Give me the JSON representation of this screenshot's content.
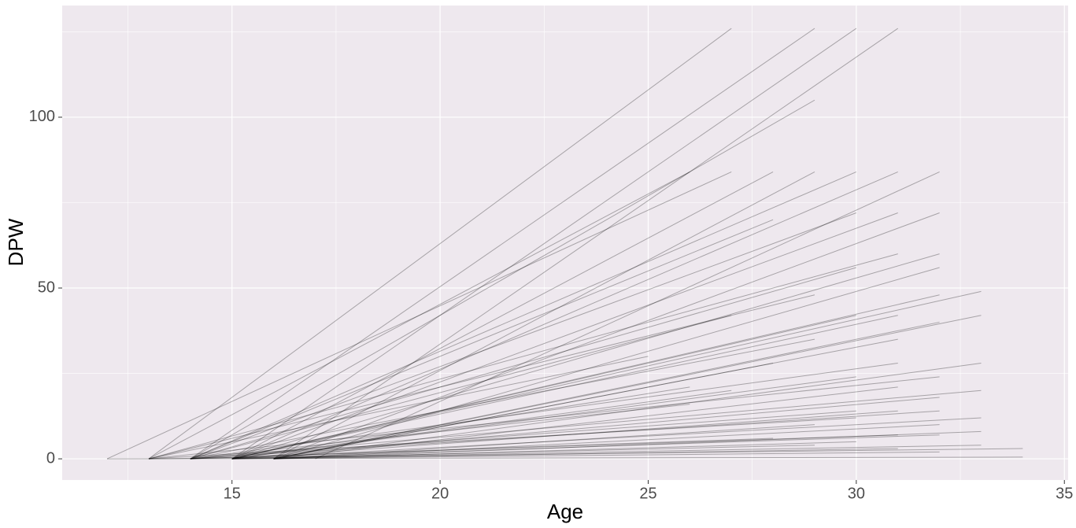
{
  "chart_data": {
    "type": "line",
    "xlabel": "Age",
    "ylabel": "DPW",
    "xlim": [
      10.92,
      35.09
    ],
    "ylim": [
      -6.2,
      132.7
    ],
    "xticks": [
      15,
      20,
      25,
      30,
      35
    ],
    "yticks": [
      0,
      50,
      100
    ],
    "x_minor_grid": [
      12.5,
      17.5,
      22.5,
      27.5,
      32.5
    ],
    "y_minor_grid": [
      25,
      75,
      125
    ],
    "grid": true,
    "panel_color": "#EEE8EE",
    "grid_color": "#FFFFFF",
    "color": "#000000",
    "opacity": 0.3,
    "series": [
      {
        "x": [
          13,
          27
        ],
        "values": [
          0,
          126
        ]
      },
      {
        "x": [
          14,
          29
        ],
        "values": [
          0,
          126
        ]
      },
      {
        "x": [
          15,
          30
        ],
        "values": [
          0,
          126
        ]
      },
      {
        "x": [
          16,
          31
        ],
        "values": [
          0,
          126
        ]
      },
      {
        "x": [
          14,
          29
        ],
        "values": [
          0,
          105
        ]
      },
      {
        "x": [
          13,
          26
        ],
        "values": [
          0,
          84
        ]
      },
      {
        "x": [
          12,
          27
        ],
        "values": [
          0,
          84
        ]
      },
      {
        "x": [
          15,
          28
        ],
        "values": [
          0,
          84
        ]
      },
      {
        "x": [
          16,
          29
        ],
        "values": [
          0,
          84
        ]
      },
      {
        "x": [
          14,
          30
        ],
        "values": [
          0,
          84
        ]
      },
      {
        "x": [
          15,
          31
        ],
        "values": [
          0,
          84
        ]
      },
      {
        "x": [
          17,
          32
        ],
        "values": [
          0,
          84
        ]
      },
      {
        "x": [
          14,
          30
        ],
        "values": [
          0,
          72
        ]
      },
      {
        "x": [
          15,
          31
        ],
        "values": [
          0,
          72
        ]
      },
      {
        "x": [
          16,
          32
        ],
        "values": [
          0,
          72
        ]
      },
      {
        "x": [
          13,
          31
        ],
        "values": [
          0,
          60
        ]
      },
      {
        "x": [
          15,
          32
        ],
        "values": [
          0,
          60
        ]
      },
      {
        "x": [
          16,
          32
        ],
        "values": [
          0,
          56
        ]
      },
      {
        "x": [
          15,
          33
        ],
        "values": [
          0,
          49
        ]
      },
      {
        "x": [
          16,
          33
        ],
        "values": [
          0,
          42
        ]
      },
      {
        "x": [
          14,
          30
        ],
        "values": [
          0,
          56
        ]
      },
      {
        "x": [
          14,
          28
        ],
        "values": [
          0,
          70
        ]
      },
      {
        "x": [
          13,
          29
        ],
        "values": [
          0,
          48
        ]
      },
      {
        "x": [
          15,
          30
        ],
        "values": [
          0,
          42
        ]
      },
      {
        "x": [
          16,
          31
        ],
        "values": [
          0,
          35
        ]
      },
      {
        "x": [
          15,
          32
        ],
        "values": [
          0,
          48
        ]
      },
      {
        "x": [
          16,
          33
        ],
        "values": [
          0,
          28
        ]
      },
      {
        "x": [
          14,
          33
        ],
        "values": [
          0,
          20
        ]
      },
      {
        "x": [
          15,
          33
        ],
        "values": [
          0,
          12
        ]
      },
      {
        "x": [
          16,
          33
        ],
        "values": [
          0,
          8
        ]
      },
      {
        "x": [
          15,
          33
        ],
        "values": [
          0,
          4
        ]
      },
      {
        "x": [
          13,
          34
        ],
        "values": [
          0,
          3
        ]
      },
      {
        "x": [
          12,
          34
        ],
        "values": [
          0,
          0.5
        ]
      },
      {
        "x": [
          14,
          27
        ],
        "values": [
          0,
          42
        ]
      },
      {
        "x": [
          13,
          25
        ],
        "values": [
          0,
          30
        ]
      },
      {
        "x": [
          15,
          26
        ],
        "values": [
          0,
          21
        ]
      },
      {
        "x": [
          16,
          28
        ],
        "values": [
          0,
          28
        ]
      },
      {
        "x": [
          14,
          29
        ],
        "values": [
          0,
          35
        ]
      },
      {
        "x": [
          15,
          31
        ],
        "values": [
          0,
          42
        ]
      },
      {
        "x": [
          16,
          32
        ],
        "values": [
          0,
          40
        ]
      },
      {
        "x": [
          15,
          30
        ],
        "values": [
          0,
          24
        ]
      },
      {
        "x": [
          14,
          31
        ],
        "values": [
          0,
          28
        ]
      },
      {
        "x": [
          16,
          31
        ],
        "values": [
          0,
          21
        ]
      },
      {
        "x": [
          15,
          32
        ],
        "values": [
          0,
          18
        ]
      },
      {
        "x": [
          14,
          30
        ],
        "values": [
          0,
          14
        ]
      },
      {
        "x": [
          16,
          29
        ],
        "values": [
          0,
          10
        ]
      },
      {
        "x": [
          15,
          31
        ],
        "values": [
          0,
          14
        ]
      },
      {
        "x": [
          13,
          32
        ],
        "values": [
          0,
          24
        ]
      },
      {
        "x": [
          14,
          32
        ],
        "values": [
          0,
          14
        ]
      },
      {
        "x": [
          16,
          32
        ],
        "values": [
          0,
          10
        ]
      },
      {
        "x": [
          15,
          32
        ],
        "values": [
          0,
          7
        ]
      },
      {
        "x": [
          14,
          31
        ],
        "values": [
          0,
          7
        ]
      },
      {
        "x": [
          16,
          30
        ],
        "values": [
          0,
          5
        ]
      },
      {
        "x": [
          15,
          29
        ],
        "values": [
          0,
          4
        ]
      },
      {
        "x": [
          14,
          28
        ],
        "values": [
          0,
          6
        ]
      },
      {
        "x": [
          16,
          31
        ],
        "values": [
          0,
          3
        ]
      },
      {
        "x": [
          15,
          32
        ],
        "values": [
          0,
          2
        ]
      },
      {
        "x": [
          13,
          30
        ],
        "values": [
          0,
          12
        ]
      },
      {
        "x": [
          14,
          26
        ],
        "values": [
          0,
          16
        ]
      },
      {
        "x": [
          15,
          27
        ],
        "values": [
          0,
          20
        ]
      }
    ]
  }
}
